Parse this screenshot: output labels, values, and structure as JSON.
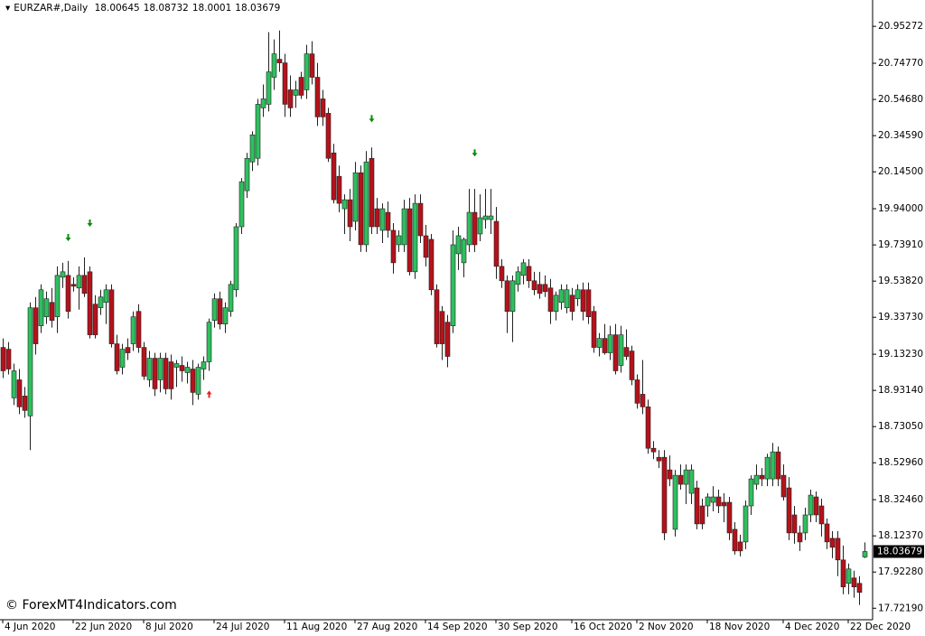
{
  "chart_data": {
    "type": "candlestick",
    "symbol": "EURZAR#,Daily",
    "watermark": "© ForexMT4Indicators.com",
    "up_color": "#2fbf5f",
    "down_color": "#b5121b",
    "ylim": [
      17.658,
      21.099
    ],
    "yticks": [
      20.95272,
      {
        "value": 20.7477,
        "label": "20.74770"
      },
      {
        "value": 20.5468,
        "label": "20.54680"
      },
      {
        "value": 20.3459,
        "label": "20.34590"
      },
      {
        "value": 20.145,
        "label": "20.14500"
      },
      {
        "value": 19.94,
        "label": "19.94000"
      },
      {
        "value": 19.7391,
        "label": "19.73910"
      },
      {
        "value": 19.5382,
        "label": "19.53820"
      },
      {
        "value": 19.3373,
        "label": "19.33730"
      },
      {
        "value": 19.1323,
        "label": "19.13230"
      },
      {
        "value": 18.9314,
        "label": "18.93140"
      },
      {
        "value": 18.7305,
        "label": "18.73050"
      },
      {
        "value": 18.5296,
        "label": "18.52960"
      },
      {
        "value": 18.3246,
        "label": "18.32460"
      },
      {
        "value": 18.1237,
        "label": "18.12370"
      },
      {
        "value": 17.9228,
        "label": "17.92280"
      },
      {
        "value": 17.7219,
        "label": "17.72190"
      }
    ],
    "x_labels": [
      {
        "index": 0,
        "label": "4 Jun 2020"
      },
      {
        "index": 13,
        "label": "22 Jun 2020"
      },
      {
        "index": 26,
        "label": "8 Jul 2020"
      },
      {
        "index": 39,
        "label": "24 Jul 2020"
      },
      {
        "index": 52,
        "label": "11 Aug 2020"
      },
      {
        "index": 65,
        "label": "27 Aug 2020"
      },
      {
        "index": 78,
        "label": "14 Sep 2020"
      },
      {
        "index": 91,
        "label": "30 Sep 2020"
      },
      {
        "index": 105,
        "label": "16 Oct 2020"
      },
      {
        "index": 117,
        "label": "2 Nov 2020"
      },
      {
        "index": 130,
        "label": "18 Nov 2020"
      },
      {
        "index": 144,
        "label": "4 Dec 2020"
      },
      {
        "index": 156,
        "label": "22 Dec 2020"
      }
    ],
    "sell_signals": [
      {
        "index": 12,
        "price": 19.78
      },
      {
        "index": 16,
        "price": 19.86
      },
      {
        "index": 68,
        "price": 20.44
      },
      {
        "index": 87,
        "price": 20.25
      }
    ],
    "buy_signals": [
      {
        "index": 38,
        "price": 18.91
      }
    ],
    "ohlc": [
      [
        19.17,
        19.22,
        19.0,
        19.04
      ],
      [
        19.16,
        19.2,
        19.02,
        19.05
      ],
      [
        18.89,
        19.08,
        18.85,
        19.04
      ],
      [
        18.99,
        19.05,
        18.8,
        18.84
      ],
      [
        18.9,
        18.95,
        18.78,
        18.82
      ],
      [
        18.79,
        19.42,
        18.6,
        19.39
      ],
      [
        19.39,
        19.45,
        19.13,
        19.19
      ],
      [
        19.29,
        19.52,
        19.25,
        19.49
      ],
      [
        19.34,
        19.48,
        19.3,
        19.44
      ],
      [
        19.42,
        19.5,
        19.28,
        19.32
      ],
      [
        19.34,
        19.62,
        19.25,
        19.57
      ],
      [
        19.56,
        19.64,
        19.5,
        19.59
      ],
      [
        19.57,
        19.65,
        19.33,
        19.37
      ],
      [
        19.52,
        19.56,
        19.48,
        19.51
      ],
      [
        19.5,
        19.62,
        19.38,
        19.57
      ],
      [
        19.57,
        19.67,
        19.45,
        19.47
      ],
      [
        19.59,
        19.62,
        19.22,
        19.24
      ],
      [
        19.41,
        19.46,
        19.22,
        19.24
      ],
      [
        19.39,
        19.49,
        19.35,
        19.45
      ],
      [
        19.42,
        19.52,
        19.3,
        19.49
      ],
      [
        19.49,
        19.52,
        19.17,
        19.19
      ],
      [
        19.19,
        19.24,
        19.02,
        19.04
      ],
      [
        19.06,
        19.19,
        19.02,
        19.16
      ],
      [
        19.17,
        19.22,
        19.1,
        19.14
      ],
      [
        19.19,
        19.37,
        19.15,
        19.34
      ],
      [
        19.37,
        19.41,
        19.14,
        19.17
      ],
      [
        19.17,
        19.2,
        18.99,
        19.01
      ],
      [
        18.99,
        19.15,
        18.95,
        19.11
      ],
      [
        19.11,
        19.14,
        18.9,
        18.94
      ],
      [
        18.99,
        19.14,
        18.92,
        19.11
      ],
      [
        19.11,
        19.14,
        18.91,
        18.94
      ],
      [
        19.09,
        19.13,
        18.88,
        18.94
      ],
      [
        19.06,
        19.1,
        18.95,
        19.08
      ],
      [
        19.07,
        19.12,
        18.98,
        19.04
      ],
      [
        19.03,
        19.09,
        18.97,
        19.06
      ],
      [
        19.05,
        19.1,
        18.85,
        18.92
      ],
      [
        18.91,
        19.08,
        18.88,
        19.06
      ],
      [
        19.05,
        19.12,
        18.99,
        19.09
      ],
      [
        19.09,
        19.33,
        19.04,
        19.31
      ],
      [
        19.32,
        19.47,
        19.28,
        19.44
      ],
      [
        19.44,
        19.48,
        19.27,
        19.3
      ],
      [
        19.3,
        19.42,
        19.25,
        19.39
      ],
      [
        19.37,
        19.54,
        19.34,
        19.52
      ],
      [
        19.49,
        19.86,
        19.45,
        19.84
      ],
      [
        19.84,
        20.11,
        19.8,
        20.09
      ],
      [
        20.04,
        20.25,
        20.0,
        20.22
      ],
      [
        20.2,
        20.37,
        20.15,
        20.35
      ],
      [
        20.22,
        20.55,
        20.18,
        20.52
      ],
      [
        20.5,
        20.63,
        20.45,
        20.55
      ],
      [
        20.52,
        20.92,
        20.48,
        20.7
      ],
      [
        20.67,
        20.88,
        20.6,
        20.8
      ],
      [
        20.77,
        20.93,
        20.7,
        20.75
      ],
      [
        20.75,
        20.8,
        20.45,
        20.52
      ],
      [
        20.6,
        20.68,
        20.45,
        20.5
      ],
      [
        20.57,
        20.65,
        20.5,
        20.6
      ],
      [
        20.67,
        20.7,
        20.55,
        20.57
      ],
      [
        20.6,
        20.85,
        20.55,
        20.8
      ],
      [
        20.8,
        20.87,
        20.63,
        20.67
      ],
      [
        20.67,
        20.75,
        20.4,
        20.45
      ],
      [
        20.55,
        20.6,
        20.4,
        20.45
      ],
      [
        20.47,
        20.5,
        20.2,
        20.22
      ],
      [
        20.25,
        20.3,
        19.97,
        19.99
      ],
      [
        20.12,
        20.18,
        19.92,
        19.97
      ],
      [
        19.94,
        20.02,
        19.8,
        19.99
      ],
      [
        19.99,
        20.05,
        19.76,
        19.84
      ],
      [
        19.87,
        20.2,
        19.82,
        20.14
      ],
      [
        20.14,
        20.18,
        19.7,
        19.74
      ],
      [
        19.74,
        20.26,
        19.7,
        20.2
      ],
      [
        20.22,
        20.28,
        19.8,
        19.84
      ],
      [
        19.94,
        20.0,
        19.8,
        19.84
      ],
      [
        19.82,
        19.97,
        19.75,
        19.94
      ],
      [
        19.92,
        19.98,
        19.78,
        19.82
      ],
      [
        19.82,
        19.86,
        19.58,
        19.64
      ],
      [
        19.74,
        19.82,
        19.7,
        19.79
      ],
      [
        19.74,
        19.99,
        19.7,
        19.94
      ],
      [
        19.94,
        20.0,
        19.57,
        19.59
      ],
      [
        19.59,
        20.02,
        19.55,
        19.97
      ],
      [
        19.97,
        20.02,
        19.75,
        19.79
      ],
      [
        19.79,
        19.85,
        19.62,
        19.67
      ],
      [
        19.77,
        19.8,
        19.46,
        19.49
      ],
      [
        19.49,
        19.52,
        19.17,
        19.19
      ],
      [
        19.37,
        19.4,
        19.1,
        19.19
      ],
      [
        19.31,
        19.35,
        19.06,
        19.12
      ],
      [
        19.29,
        19.82,
        19.25,
        19.74
      ],
      [
        19.69,
        19.84,
        19.6,
        19.79
      ],
      [
        19.64,
        19.78,
        19.56,
        19.77
      ],
      [
        19.74,
        20.05,
        19.7,
        19.92
      ],
      [
        19.92,
        20.05,
        19.7,
        19.74
      ],
      [
        19.8,
        20.02,
        19.76,
        19.89
      ],
      [
        19.88,
        20.05,
        19.83,
        19.9
      ],
      [
        19.88,
        20.05,
        19.8,
        19.9
      ],
      [
        19.87,
        19.95,
        19.55,
        19.62
      ],
      [
        19.62,
        19.66,
        19.5,
        19.54
      ],
      [
        19.54,
        19.57,
        19.25,
        19.37
      ],
      [
        19.37,
        19.57,
        19.2,
        19.54
      ],
      [
        19.52,
        19.62,
        19.48,
        19.59
      ],
      [
        19.57,
        19.66,
        19.52,
        19.64
      ],
      [
        19.62,
        19.66,
        19.5,
        19.54
      ],
      [
        19.54,
        19.59,
        19.46,
        19.49
      ],
      [
        19.52,
        19.59,
        19.44,
        19.47
      ],
      [
        19.52,
        19.57,
        19.45,
        19.48
      ],
      [
        19.5,
        19.55,
        19.3,
        19.37
      ],
      [
        19.37,
        19.48,
        19.32,
        19.46
      ],
      [
        19.42,
        19.52,
        19.38,
        19.49
      ],
      [
        19.39,
        19.52,
        19.36,
        19.49
      ],
      [
        19.46,
        19.5,
        19.32,
        19.37
      ],
      [
        19.44,
        19.52,
        19.4,
        19.49
      ],
      [
        19.49,
        19.53,
        19.32,
        19.37
      ],
      [
        19.49,
        19.53,
        19.3,
        19.34
      ],
      [
        19.37,
        19.4,
        19.14,
        19.17
      ],
      [
        19.17,
        19.25,
        19.12,
        19.22
      ],
      [
        19.22,
        19.3,
        19.13,
        19.14
      ],
      [
        19.14,
        19.29,
        19.1,
        19.24
      ],
      [
        19.24,
        19.3,
        19.02,
        19.04
      ],
      [
        19.07,
        19.29,
        19.03,
        19.24
      ],
      [
        19.17,
        19.27,
        19.1,
        19.12
      ],
      [
        19.15,
        19.18,
        18.96,
        18.99
      ],
      [
        18.99,
        19.02,
        18.83,
        18.86
      ],
      [
        18.91,
        19.1,
        18.8,
        18.84
      ],
      [
        18.84,
        18.88,
        18.58,
        18.61
      ],
      [
        18.61,
        18.65,
        18.55,
        18.59
      ],
      [
        18.56,
        18.6,
        18.5,
        18.54
      ],
      [
        18.56,
        18.6,
        18.1,
        18.14
      ],
      [
        18.49,
        18.57,
        18.4,
        18.44
      ],
      [
        18.16,
        18.49,
        18.12,
        18.46
      ],
      [
        18.46,
        18.52,
        18.38,
        18.41
      ],
      [
        18.41,
        18.52,
        18.3,
        18.49
      ],
      [
        18.36,
        18.52,
        18.3,
        18.49
      ],
      [
        18.39,
        18.43,
        18.16,
        18.19
      ],
      [
        18.29,
        18.33,
        18.16,
        18.19
      ],
      [
        18.29,
        18.36,
        18.23,
        18.34
      ],
      [
        18.31,
        18.4,
        18.26,
        18.34
      ],
      [
        18.34,
        18.38,
        18.25,
        18.29
      ],
      [
        18.31,
        18.36,
        18.2,
        18.29
      ],
      [
        18.31,
        18.34,
        18.1,
        18.14
      ],
      [
        18.16,
        18.2,
        18.02,
        18.04
      ],
      [
        18.09,
        18.13,
        18.01,
        18.04
      ],
      [
        18.09,
        18.32,
        18.05,
        18.29
      ],
      [
        18.29,
        18.46,
        18.24,
        18.44
      ],
      [
        18.41,
        18.52,
        18.38,
        18.46
      ],
      [
        18.46,
        18.5,
        18.4,
        18.44
      ],
      [
        18.44,
        18.58,
        18.4,
        18.56
      ],
      [
        18.44,
        18.64,
        18.4,
        18.59
      ],
      [
        18.59,
        18.62,
        18.4,
        18.44
      ],
      [
        18.46,
        18.52,
        18.32,
        18.34
      ],
      [
        18.39,
        18.45,
        18.1,
        18.14
      ],
      [
        18.24,
        18.29,
        18.08,
        18.14
      ],
      [
        18.14,
        18.18,
        18.04,
        18.09
      ],
      [
        18.14,
        18.28,
        18.1,
        18.24
      ],
      [
        18.24,
        18.38,
        18.2,
        18.35
      ],
      [
        18.34,
        18.37,
        18.2,
        18.24
      ],
      [
        18.29,
        18.33,
        18.12,
        18.19
      ],
      [
        18.19,
        18.22,
        18.05,
        18.09
      ],
      [
        18.11,
        18.15,
        18.0,
        18.06
      ],
      [
        18.11,
        18.15,
        17.9,
        17.99
      ],
      [
        17.99,
        18.07,
        17.8,
        17.84
      ],
      [
        17.86,
        17.97,
        17.8,
        17.94
      ],
      [
        17.89,
        17.93,
        17.78,
        17.84
      ],
      [
        17.86,
        17.9,
        17.74,
        17.81
      ],
      [
        18.00645,
        18.08732,
        18.0001,
        18.03679
      ]
    ]
  }
}
